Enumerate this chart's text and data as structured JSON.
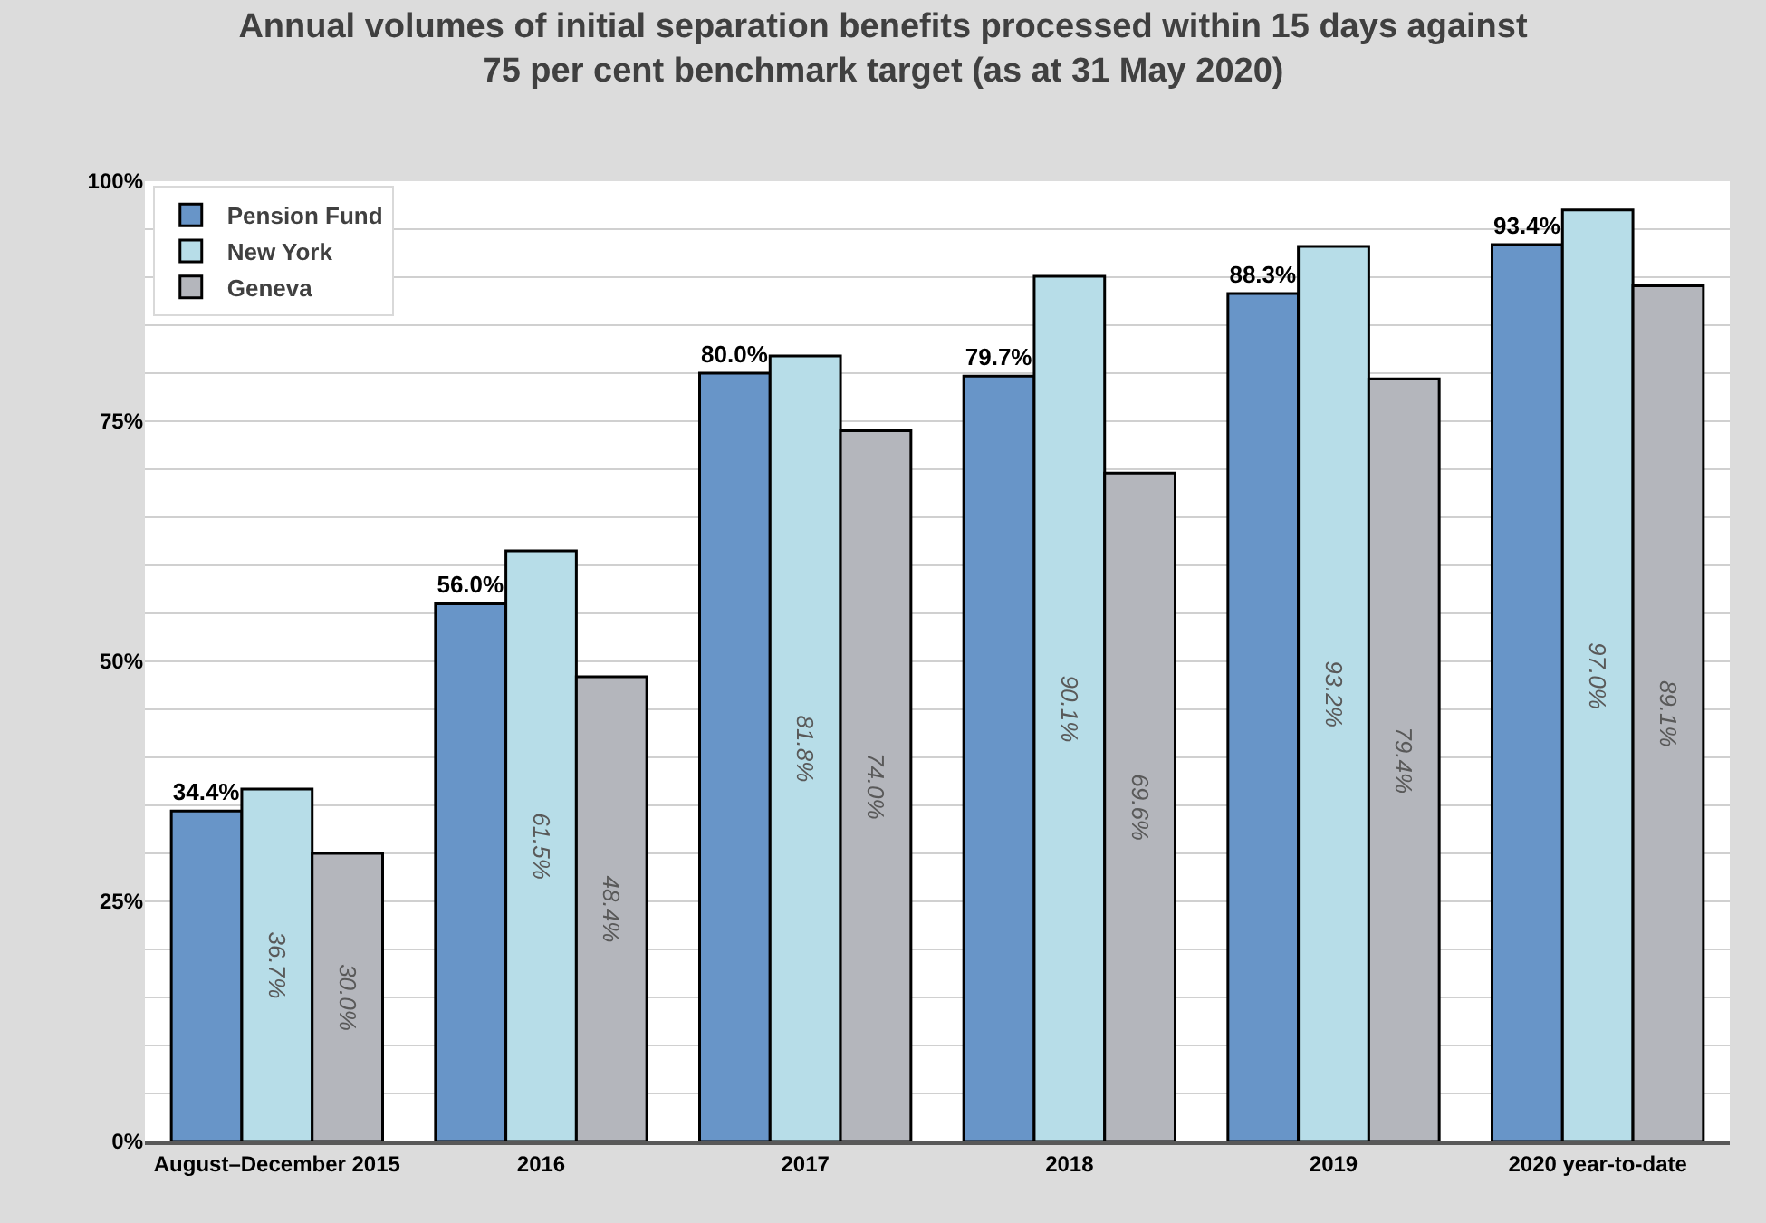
{
  "chart_data": {
    "type": "bar",
    "title": "Annual volumes of initial separation benefits processed within 15 days against 75 per cent benchmark target (as at 31 May 2020)",
    "categories": [
      "August–December 2015",
      "2016",
      "2017",
      "2018",
      "2019",
      "2020 year-to-date"
    ],
    "series": [
      {
        "name": "Pension Fund",
        "color": "#6895c8",
        "values": [
          34.4,
          56.0,
          80.0,
          79.7,
          88.3,
          93.4
        ],
        "value_labels": [
          "34.4%",
          "56.0%",
          "80.0%",
          "79.7%",
          "88.3%",
          "93.4%"
        ]
      },
      {
        "name": "New York",
        "color": "#b7dde8",
        "values": [
          36.7,
          61.5,
          81.8,
          90.1,
          93.2,
          97.0
        ],
        "value_labels": [
          "36.7%",
          "61.5%",
          "81.8%",
          "90.1%",
          "93.2%",
          "97.0%"
        ]
      },
      {
        "name": "Geneva",
        "color": "#b4b6bc",
        "values": [
          30.0,
          48.4,
          74.0,
          69.6,
          79.4,
          89.1
        ],
        "value_labels": [
          "30.0%",
          "48.4%",
          "74.0%",
          "69.6%",
          "79.4%",
          "89.1%"
        ]
      }
    ],
    "ylim": [
      0,
      100
    ],
    "yticks": [
      {
        "value": 0,
        "label": "0%"
      },
      {
        "value": 5,
        "label": null
      },
      {
        "value": 10,
        "label": null
      },
      {
        "value": 15,
        "label": null
      },
      {
        "value": 20,
        "label": null
      },
      {
        "value": 25,
        "label": "25%"
      },
      {
        "value": 30,
        "label": null
      },
      {
        "value": 35,
        "label": null
      },
      {
        "value": 40,
        "label": null
      },
      {
        "value": 45,
        "label": null
      },
      {
        "value": 50,
        "label": "50%"
      },
      {
        "value": 55,
        "label": null
      },
      {
        "value": 60,
        "label": null
      },
      {
        "value": 65,
        "label": null
      },
      {
        "value": 70,
        "label": null
      },
      {
        "value": 75,
        "label": "75%"
      },
      {
        "value": 80,
        "label": null
      },
      {
        "value": 85,
        "label": null
      },
      {
        "value": 90,
        "label": null
      },
      {
        "value": 95,
        "label": null
      },
      {
        "value": 100,
        "label": "100%"
      }
    ],
    "grid": true,
    "legend": "top left"
  }
}
